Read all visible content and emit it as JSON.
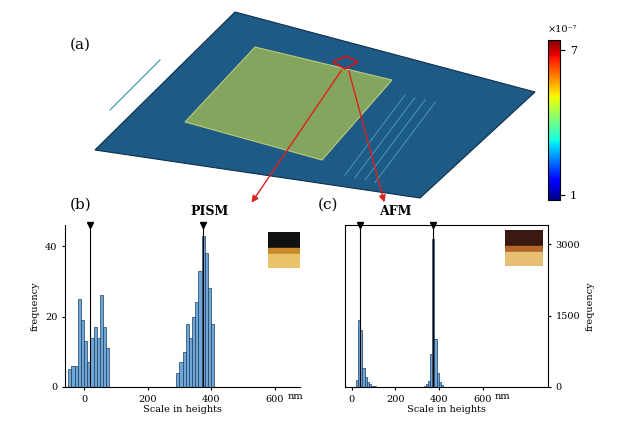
{
  "figure_labels": {
    "a": "(a)",
    "b": "(b)",
    "c": "(c)"
  },
  "image_panel": {
    "colorbar": {
      "range": [
        0.8,
        7.4
      ],
      "ticks": [
        1,
        7
      ],
      "label": "×10⁻⁷"
    }
  },
  "chart_data": [
    {
      "type": "histogram",
      "title": "PISM",
      "x_label": "Scale in heights",
      "y_label": "frequency",
      "unit_label": "nm",
      "bins": [
        -50,
        -40,
        -30,
        -20,
        -10,
        0,
        10,
        20,
        30,
        40,
        50,
        60,
        70,
        80,
        90,
        100,
        110,
        120,
        130,
        140,
        150,
        160,
        170,
        180,
        190,
        200,
        210,
        220,
        230,
        240,
        250,
        260,
        270,
        280,
        290,
        300,
        310,
        320,
        330,
        340,
        350,
        360,
        370,
        380,
        390,
        400,
        410
      ],
      "counts": [
        5,
        6,
        6,
        25,
        19,
        13,
        7,
        14,
        17,
        14,
        26,
        17,
        11,
        0,
        0,
        0,
        0,
        0,
        0,
        0,
        0,
        0,
        0,
        0,
        0,
        0,
        0,
        0,
        0,
        0,
        0,
        0,
        0,
        0,
        4,
        7,
        10,
        18,
        14,
        20,
        24,
        33,
        43,
        38,
        28,
        18
      ],
      "color": "#6fa6d8",
      "xlim": [
        -60,
        680
      ],
      "xticks": [
        0,
        200,
        400,
        600
      ],
      "ylim": [
        0,
        46
      ],
      "yticks": [
        0,
        20,
        40
      ],
      "peak_markers": [
        20,
        375
      ]
    },
    {
      "type": "histogram",
      "title": "AFM",
      "x_label": "Scale in heights",
      "y_label": "frequency",
      "unit_label": "nm",
      "bins": [
        20,
        30,
        40,
        50,
        60,
        70,
        80,
        90,
        100,
        110,
        120,
        130,
        140,
        150,
        160,
        170,
        180,
        190,
        200,
        210,
        220,
        230,
        240,
        250,
        260,
        270,
        280,
        290,
        300,
        310,
        320,
        330,
        340,
        350,
        360,
        370,
        380,
        390,
        400,
        410,
        420
      ],
      "counts": [
        150,
        1400,
        1200,
        400,
        200,
        100,
        60,
        30,
        20,
        0,
        0,
        0,
        0,
        0,
        0,
        0,
        0,
        0,
        0,
        0,
        0,
        0,
        0,
        0,
        0,
        0,
        0,
        0,
        0,
        0,
        0,
        30,
        60,
        120,
        700,
        3100,
        1000,
        300,
        100,
        40
      ],
      "color": "#6fa6d8",
      "xlim": [
        -30,
        900
      ],
      "xticks": [
        0,
        200,
        400,
        600
      ],
      "ylim": [
        0,
        3400
      ],
      "yticks": [
        0,
        1500,
        3000
      ],
      "peak_markers": [
        40,
        375
      ]
    }
  ]
}
